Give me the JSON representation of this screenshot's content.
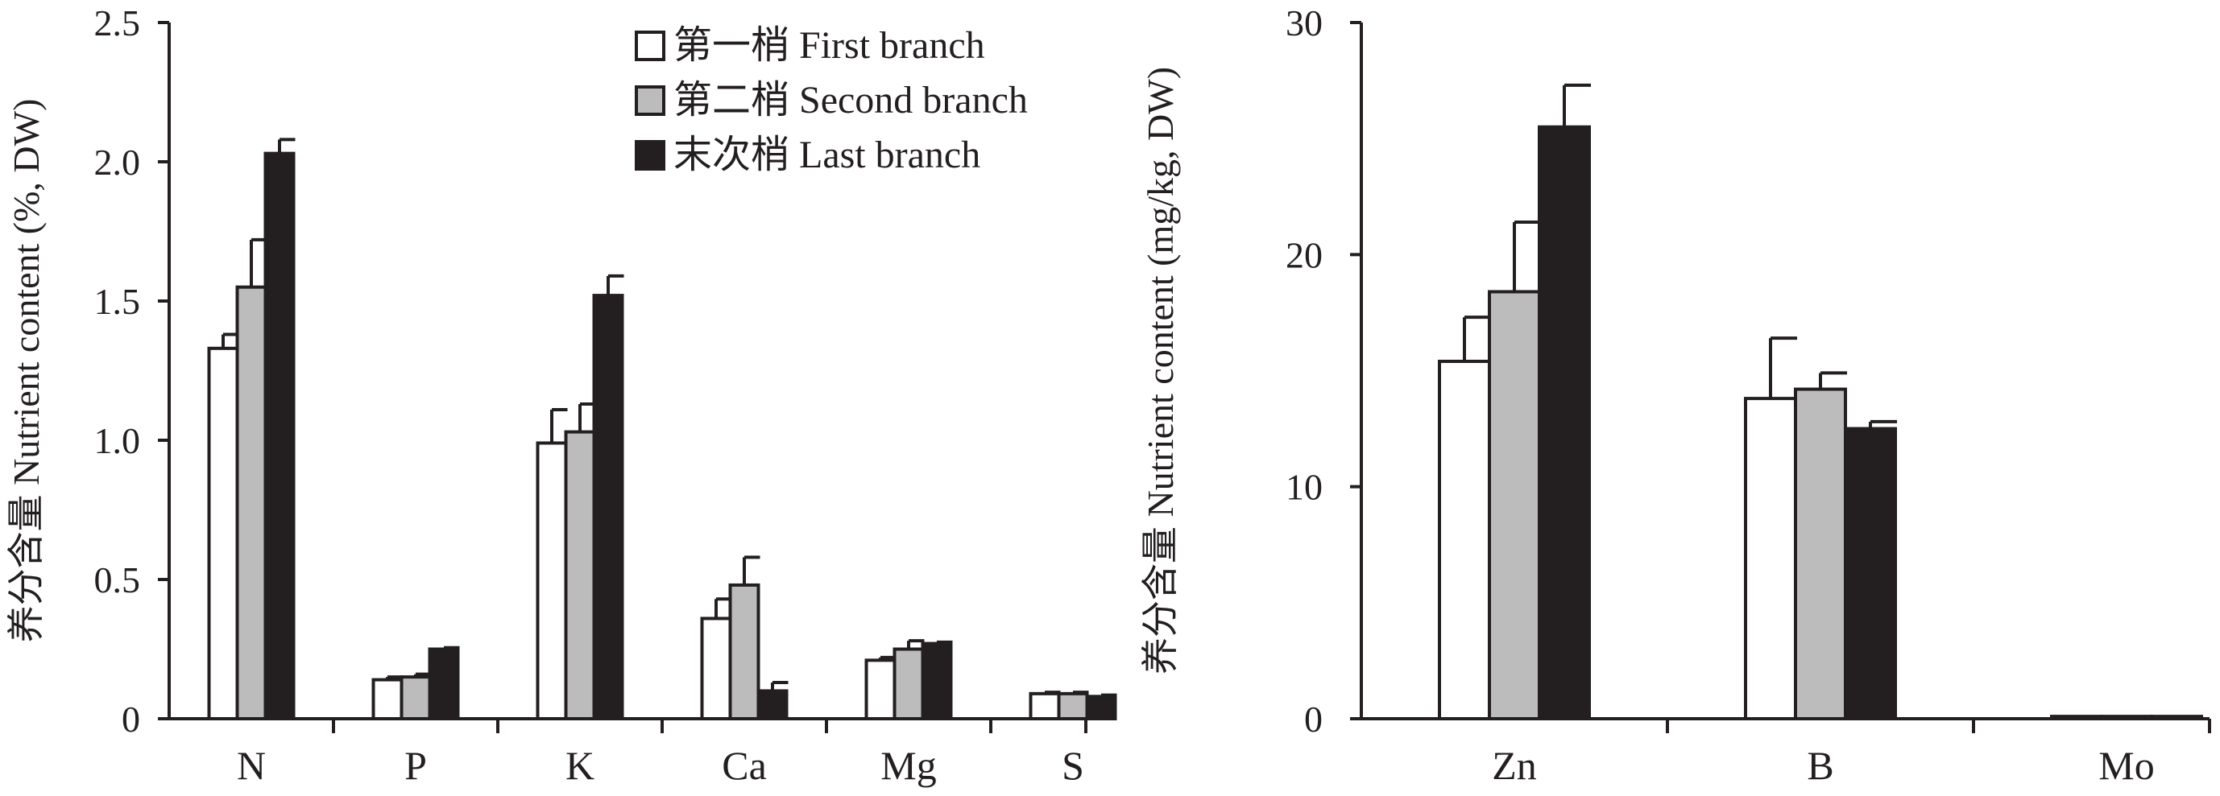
{
  "colors": {
    "first": "#ffffff",
    "second": "#bcbcbc",
    "last": "#231f20",
    "axis": "#231f20"
  },
  "legend": {
    "placement": "top-right of left panel",
    "items": [
      {
        "key": "first",
        "label": "第一梢 First branch"
      },
      {
        "key": "second",
        "label": "第二梢 Second branch"
      },
      {
        "key": "last",
        "label": "末次梢 Last branch"
      }
    ]
  },
  "chart_data": [
    {
      "type": "bar",
      "ylabel": "养分含量 Nutrient content (%, DW)",
      "ylim": [
        0,
        2.5
      ],
      "yticks": [
        "0",
        "0.5",
        "1.0",
        "1.5",
        "2.0",
        "2.5"
      ],
      "categories": [
        "N",
        "P",
        "K",
        "Ca",
        "Mg",
        "S"
      ],
      "series": [
        {
          "name": "第一梢 First branch",
          "values": [
            1.33,
            0.14,
            0.99,
            0.36,
            0.21,
            0.09
          ],
          "errors": [
            0.05,
            0.01,
            0.12,
            0.07,
            0.01,
            0.005
          ]
        },
        {
          "name": "第二梢 Second branch",
          "values": [
            1.55,
            0.15,
            1.03,
            0.48,
            0.25,
            0.09
          ],
          "errors": [
            0.17,
            0.01,
            0.1,
            0.1,
            0.03,
            0.005
          ]
        },
        {
          "name": "末次梢 Last branch",
          "values": [
            2.03,
            0.25,
            1.52,
            0.1,
            0.27,
            0.08
          ],
          "errors": [
            0.05,
            0.005,
            0.07,
            0.03,
            0.005,
            0.005
          ]
        }
      ]
    },
    {
      "type": "bar",
      "ylabel": "养分含量 Nutrient content (mg/kg, DW)",
      "ylim": [
        0,
        30
      ],
      "yticks": [
        "0",
        "10",
        "20",
        "30"
      ],
      "categories": [
        "Zn",
        "B",
        "Mo"
      ],
      "series": [
        {
          "name": "第一梢 First branch",
          "values": [
            15.4,
            13.8,
            0.1
          ],
          "errors": [
            1.9,
            2.6,
            0
          ]
        },
        {
          "name": "第二梢 Second branch",
          "values": [
            18.4,
            14.2,
            0.1
          ],
          "errors": [
            3.0,
            0.7,
            0
          ]
        },
        {
          "name": "末次梢 Last branch",
          "values": [
            25.5,
            12.5,
            0.1
          ],
          "errors": [
            1.8,
            0.3,
            0
          ]
        }
      ]
    }
  ]
}
